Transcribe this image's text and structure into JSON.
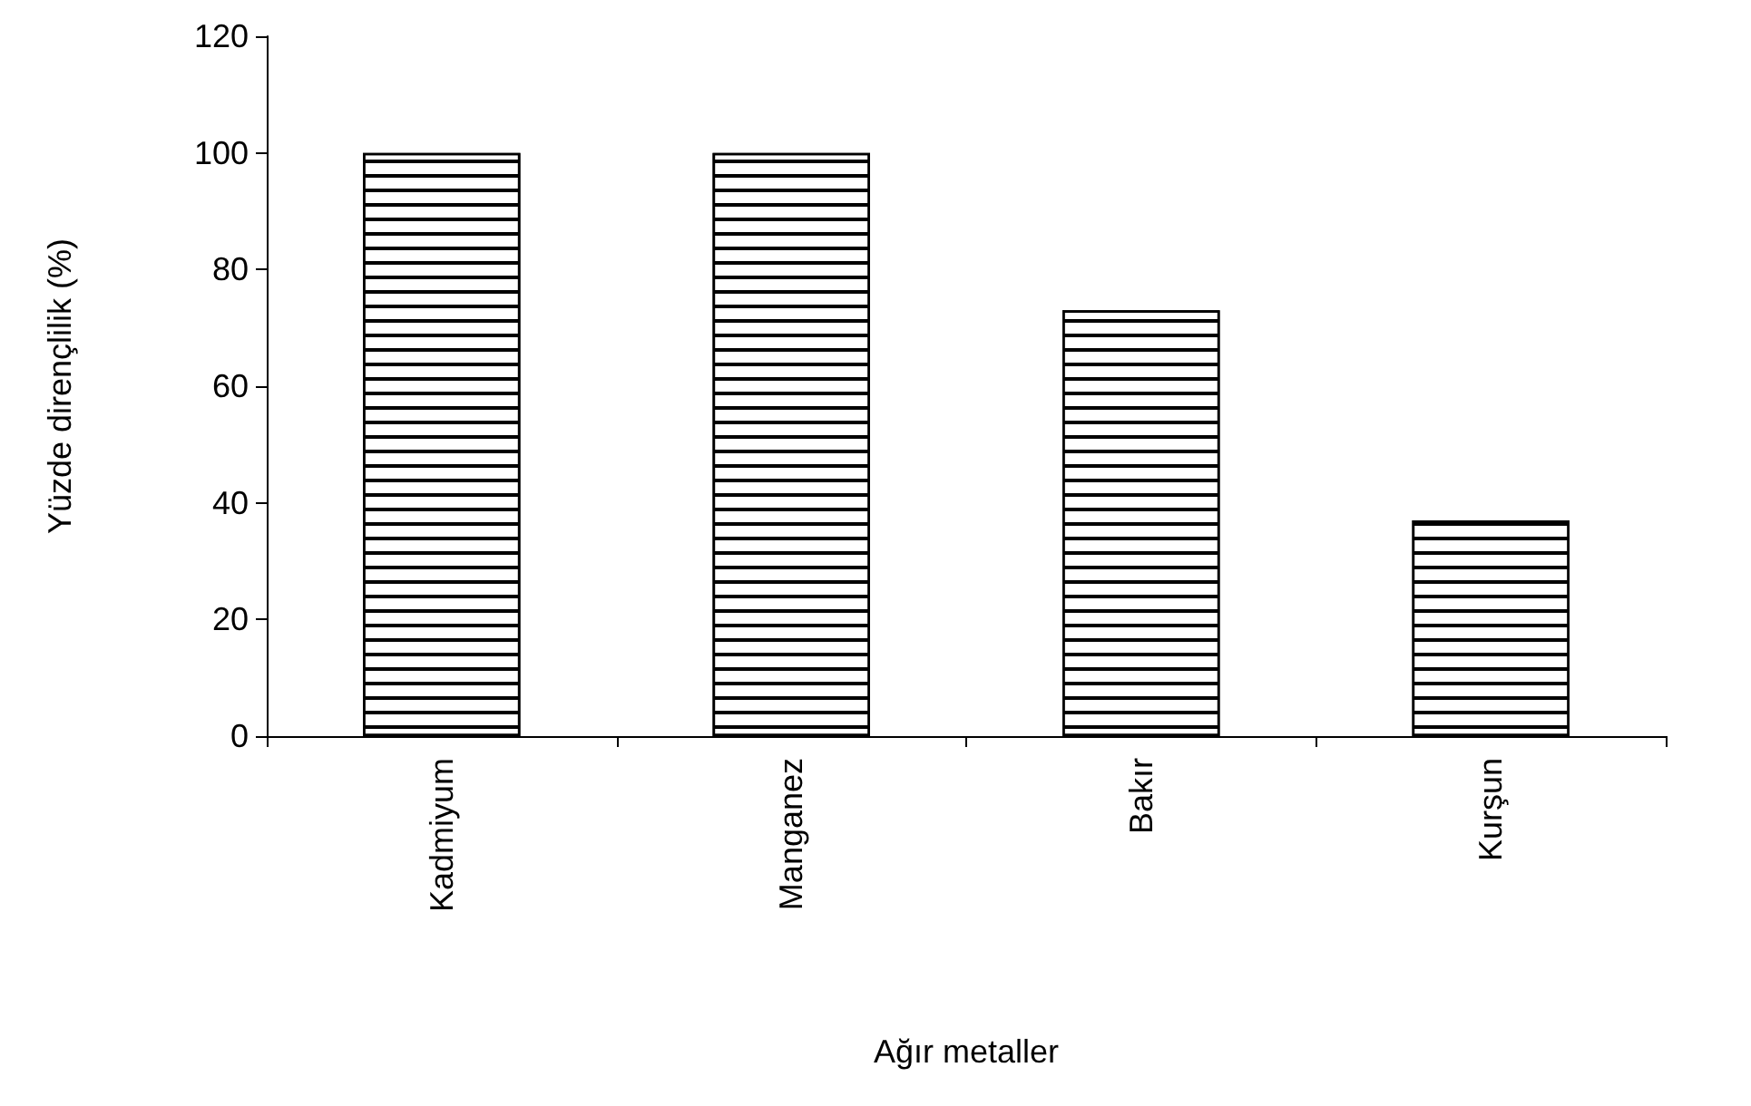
{
  "chart_data": {
    "type": "bar",
    "xlabel": "Ağır metaller",
    "ylabel": "Yüzde dirençlilik (%)",
    "categories": [
      "Kadmiyum",
      "Manganez",
      "Bakır",
      "Kurşun"
    ],
    "values": [
      100,
      100,
      73,
      37
    ],
    "color": "#ffffff",
    "ylim": [
      0,
      120
    ],
    "yticks": [
      0,
      20,
      40,
      60,
      80,
      100,
      120
    ]
  }
}
